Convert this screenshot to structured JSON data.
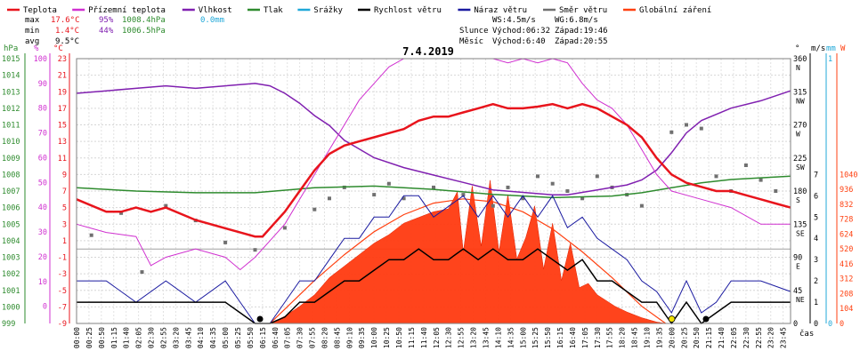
{
  "chart_data": {
    "type": "line",
    "title": "7.4.2019",
    "legend": [
      {
        "name": "Teplota",
        "color": "#e8141c"
      },
      {
        "name": "Přízemní teplota",
        "color": "#d030d0"
      },
      {
        "name": "Vlhkost",
        "color": "#8020b0"
      },
      {
        "name": "Tlak",
        "color": "#2e8b2e"
      },
      {
        "name": "Srážky",
        "color": "#20a8d8"
      },
      {
        "name": "Rychlost větru",
        "color": "#000000"
      },
      {
        "name": "Náraz větru",
        "color": "#1a1aa0"
      },
      {
        "name": "Směr větru",
        "color": "#707070"
      },
      {
        "name": "Globální záření",
        "color": "#ff4010"
      }
    ],
    "stats": {
      "max": {
        "label": "max",
        "temp": "17.6°C",
        "hum": "95%",
        "press": "1008.4hPa",
        "rain": "0.0mm"
      },
      "min": {
        "label": "min",
        "temp": "1.4°C",
        "hum": "44%",
        "press": "1006.5hPa"
      },
      "avg": {
        "label": "avg",
        "temp": "9.5°C"
      }
    },
    "wind_info": {
      "ws": "WS:4.5m/s",
      "wg": "WG:6.8m/s"
    },
    "sun_info": {
      "slunce": "Slunce",
      "mesic": "Měsíc",
      "sun_rise": "Východ:06:32",
      "sun_set": "Západ:19:46",
      "moon_rise": "Východ:6:40",
      "moon_set": "Západ:20:55"
    },
    "axes": {
      "hpa": {
        "unit": "hPa",
        "ticks": [
          "1015",
          "1014",
          "1013",
          "1012",
          "1011",
          "1010",
          "1009",
          "1008",
          "1007",
          "1006",
          "1005",
          "1004",
          "1003",
          "1002",
          "1001",
          "1000",
          "999"
        ]
      },
      "pct": {
        "unit": "%",
        "ticks": [
          "100",
          "90",
          "80",
          "70",
          "60",
          "50",
          "40",
          "30",
          "20",
          "10",
          "0"
        ]
      },
      "celsius": {
        "unit": "°C",
        "ticks": [
          "23",
          "21",
          "19",
          "17",
          "15",
          "13",
          "11",
          "9",
          "7",
          "5",
          "3",
          "1",
          "-1",
          "-3",
          "-5",
          "-7",
          "-9"
        ]
      },
      "dir": {
        "unit": "°",
        "ticks": [
          {
            "deg": "360",
            "dir": "N"
          },
          {
            "deg": "315",
            "dir": "NW"
          },
          {
            "deg": "270",
            "dir": "W"
          },
          {
            "deg": "225",
            "dir": "SW"
          },
          {
            "deg": "180",
            "dir": "S"
          },
          {
            "deg": "135",
            "dir": "SE"
          },
          {
            "deg": "90",
            "dir": "E"
          },
          {
            "deg": "45",
            "dir": "NE"
          },
          {
            "deg": "0",
            "dir": ""
          }
        ]
      },
      "ms": {
        "unit": "m/s",
        "ticks": [
          "7",
          "6",
          "5",
          "4",
          "3",
          "2",
          "1",
          "0"
        ]
      },
      "mm": {
        "unit": "mm",
        "ticks": [
          "1",
          "0"
        ]
      },
      "w": {
        "unit": "W",
        "ticks": [
          "1040",
          "936",
          "832",
          "728",
          "624",
          "520",
          "416",
          "312",
          "208",
          "104",
          "0"
        ]
      },
      "x_label": "čas",
      "x_ticks": [
        "00:00",
        "00:25",
        "00:50",
        "01:15",
        "01:40",
        "02:05",
        "02:30",
        "02:55",
        "03:20",
        "03:45",
        "04:10",
        "04:35",
        "05:00",
        "05:25",
        "05:50",
        "06:15",
        "06:40",
        "07:05",
        "07:30",
        "07:55",
        "08:20",
        "08:45",
        "09:10",
        "09:35",
        "10:00",
        "10:25",
        "10:50",
        "11:15",
        "11:40",
        "12:05",
        "12:30",
        "12:55",
        "13:20",
        "13:45",
        "14:10",
        "14:35",
        "15:00",
        "15:25",
        "15:50",
        "16:15",
        "16:40",
        "17:05",
        "17:30",
        "17:55",
        "18:20",
        "18:45",
        "19:10",
        "19:35",
        "20:00",
        "20:25",
        "20:50",
        "21:15",
        "21:40",
        "22:05",
        "22:30",
        "22:55",
        "23:20",
        "23:45"
      ]
    },
    "series": {
      "temperature": {
        "unit": "°C",
        "x_hours": [
          0,
          1,
          1.5,
          2,
          2.5,
          3,
          4,
          5,
          5.5,
          6,
          6.25,
          6.5,
          7,
          7.5,
          8,
          8.5,
          9,
          9.5,
          10,
          10.5,
          11,
          11.5,
          12,
          12.5,
          13,
          13.5,
          14,
          14.5,
          15,
          15.5,
          16,
          16.5,
          17,
          17.5,
          18,
          18.5,
          19,
          19.5,
          20,
          20.5,
          21,
          21.5,
          22,
          22.5,
          23,
          23.5,
          24
        ],
        "values": [
          6,
          4.5,
          4.5,
          5,
          4.5,
          5,
          3.5,
          2.5,
          2,
          1.5,
          1.5,
          2.5,
          4.5,
          7,
          9.5,
          11.5,
          12.5,
          13,
          13.5,
          14,
          14.5,
          15.5,
          16,
          16,
          16.5,
          17,
          17.5,
          17,
          17,
          17.2,
          17.5,
          17,
          17.5,
          17,
          16,
          15,
          13.5,
          11,
          9,
          8,
          7.5,
          7,
          7,
          6.5,
          6,
          5.5,
          5
        ]
      },
      "ground_temperature": {
        "unit": "°C",
        "x_hours": [
          0,
          1,
          2,
          2.5,
          3,
          4,
          5,
          5.5,
          6,
          6.5,
          7,
          7.5,
          8,
          8.5,
          9,
          9.5,
          10,
          10.5,
          11,
          11.5,
          12,
          12.5,
          13,
          13.5,
          14,
          14.5,
          15,
          15.5,
          16,
          16.5,
          17,
          17.5,
          18,
          18.5,
          19,
          19.5,
          20,
          21,
          22,
          23,
          24
        ],
        "values": [
          3,
          2,
          1.5,
          -2,
          -1,
          0,
          -1,
          -2.5,
          -1,
          1,
          3,
          6,
          9,
          12,
          15,
          18,
          20,
          22,
          23,
          23,
          23,
          23,
          23,
          23,
          23,
          22.5,
          23,
          22.5,
          23,
          22.5,
          20,
          18,
          17,
          15,
          12,
          9,
          7,
          6,
          5,
          3,
          3
        ]
      },
      "humidity": {
        "unit": "%",
        "x_hours": [
          0,
          1,
          2,
          3,
          4,
          5,
          6,
          6.5,
          7,
          7.5,
          8,
          8.5,
          9,
          10,
          11,
          12,
          13,
          14,
          15,
          16,
          16.5,
          17,
          17.5,
          18,
          18.5,
          19,
          19.5,
          20,
          20.5,
          21,
          22,
          23,
          24
        ],
        "values": [
          86,
          87,
          88,
          89,
          88,
          89,
          90,
          89,
          86,
          82,
          77,
          73,
          67,
          60,
          56,
          53,
          50,
          47,
          46,
          45,
          45,
          46,
          47,
          48,
          49,
          51,
          55,
          62,
          70,
          75,
          80,
          83,
          87
        ]
      },
      "pressure": {
        "unit": "hPa",
        "x_hours": [
          0,
          2,
          4,
          6,
          8,
          10,
          12,
          14,
          16,
          18,
          19,
          20,
          21,
          22,
          23,
          24
        ],
        "values": [
          1007.2,
          1007,
          1006.9,
          1006.9,
          1007.2,
          1007.3,
          1007.1,
          1006.8,
          1006.6,
          1006.7,
          1006.9,
          1007.2,
          1007.5,
          1007.7,
          1007.8,
          1007.9
        ]
      },
      "wind_speed": {
        "unit": "m/s",
        "x_hours": [
          0,
          1,
          2,
          3,
          4,
          5,
          5.5,
          6,
          6.5,
          7,
          7.5,
          8,
          8.5,
          9,
          9.5,
          10,
          10.5,
          11,
          11.5,
          12,
          12.5,
          13,
          13.5,
          14,
          14.5,
          15,
          15.5,
          16,
          16.5,
          17,
          17.5,
          18,
          18.5,
          19,
          19.5,
          20,
          20.5,
          21,
          21.5,
          22,
          23,
          24
        ],
        "values": [
          1,
          1,
          1,
          1,
          1,
          1,
          0.5,
          0,
          0,
          0.3,
          1,
          1,
          1.5,
          2,
          2,
          2.5,
          3,
          3,
          3.5,
          3,
          3,
          3.5,
          3,
          3.5,
          3,
          3,
          3.5,
          3,
          2.5,
          3,
          2,
          2,
          1.5,
          1,
          1,
          0,
          1,
          0,
          0.5,
          1,
          1,
          1
        ]
      },
      "wind_gust": {
        "unit": "m/s",
        "x_hours": [
          0,
          1,
          2,
          3,
          4,
          5,
          5.5,
          6,
          6.5,
          7,
          7.5,
          8,
          8.5,
          9,
          9.5,
          10,
          10.5,
          11,
          11.5,
          12,
          12.5,
          13,
          13.5,
          14,
          14.5,
          15,
          15.5,
          16,
          16.5,
          17,
          17.5,
          18,
          18.5,
          19,
          19.5,
          20,
          20.5,
          21,
          21.5,
          22,
          23,
          24
        ],
        "values": [
          2,
          2,
          1,
          2,
          1,
          2,
          1,
          0,
          0,
          1,
          2,
          2,
          3,
          4,
          4,
          5,
          5,
          6,
          6,
          5,
          5.5,
          6,
          5,
          6,
          5,
          6,
          5,
          6,
          4.5,
          5,
          4,
          3.5,
          3,
          2,
          1.5,
          0.5,
          2,
          0.5,
          1,
          2,
          2,
          1.5
        ]
      },
      "global_radiation": {
        "unit": "W",
        "x_hours": [
          6.5,
          7,
          7.5,
          8,
          8.5,
          9,
          9.5,
          10,
          10.5,
          11,
          11.5,
          12,
          12.5,
          12.8,
          13,
          13.3,
          13.6,
          13.9,
          14.2,
          14.5,
          14.8,
          15.1,
          15.4,
          15.7,
          16,
          16.3,
          16.6,
          16.9,
          17.2,
          17.5,
          17.8,
          18.1,
          18.5,
          19,
          19.5,
          19.8
        ],
        "values": [
          0,
          50,
          120,
          200,
          320,
          400,
          480,
          560,
          620,
          700,
          740,
          780,
          800,
          920,
          500,
          960,
          540,
          1000,
          500,
          900,
          450,
          600,
          820,
          380,
          700,
          300,
          560,
          250,
          280,
          200,
          160,
          120,
          80,
          40,
          10,
          0
        ]
      },
      "clear_sky_radiation": {
        "unit": "W",
        "x_hours": [
          6.5,
          7,
          8,
          9,
          10,
          11,
          12,
          13,
          14,
          15,
          16,
          17,
          18,
          19,
          19.8
        ],
        "values": [
          0,
          100,
          300,
          480,
          640,
          760,
          840,
          870,
          850,
          780,
          660,
          500,
          320,
          120,
          0
        ]
      },
      "wind_direction": {
        "unit": "°",
        "x_hours": [
          0.5,
          1.5,
          2.2,
          3,
          4,
          5,
          6,
          7,
          8,
          8.5,
          9,
          10,
          10.5,
          11,
          12,
          13,
          14,
          14.5,
          15,
          15.5,
          16,
          16.5,
          17,
          17.5,
          18,
          18.5,
          19,
          20,
          20.5,
          21,
          21.5,
          22,
          22.5,
          23,
          23.5
        ],
        "values": [
          120,
          150,
          70,
          160,
          140,
          110,
          100,
          130,
          155,
          170,
          185,
          175,
          190,
          170,
          185,
          175,
          160,
          185,
          170,
          200,
          190,
          180,
          170,
          200,
          185,
          175,
          160,
          260,
          270,
          265,
          200,
          180,
          215,
          195,
          180
        ]
      }
    }
  }
}
